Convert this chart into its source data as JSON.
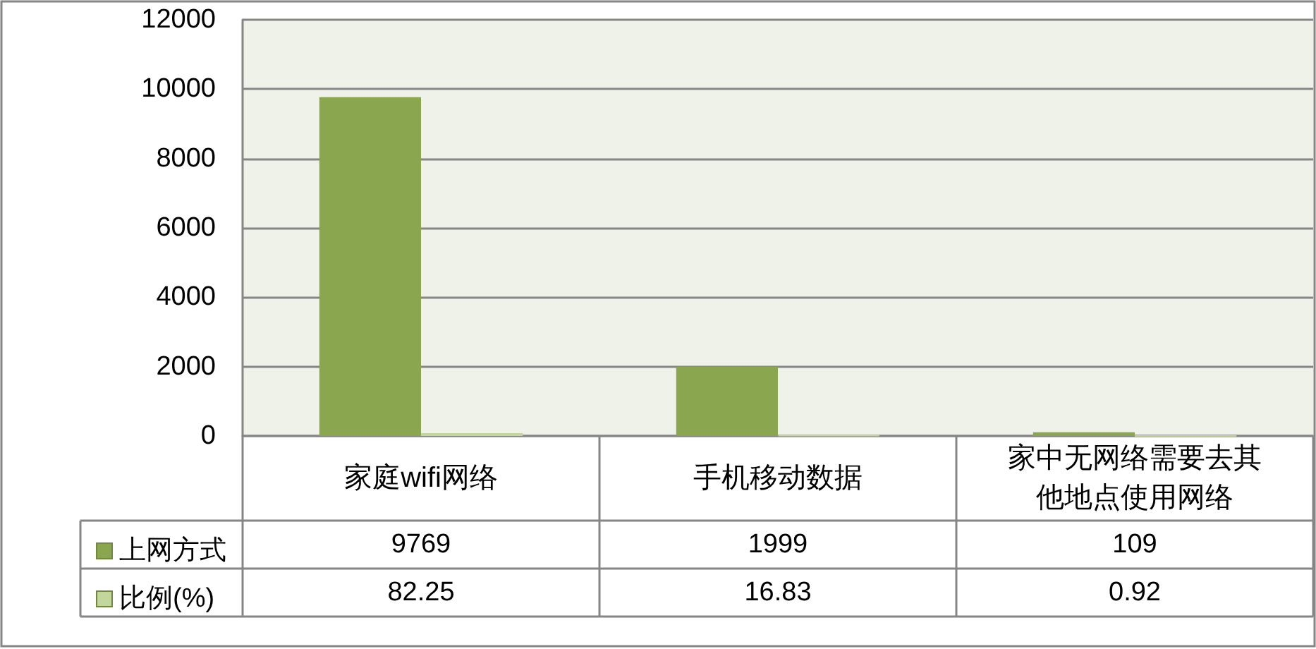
{
  "chart_data": {
    "type": "bar",
    "categories": [
      "家庭wifi网络",
      "手机移动数据",
      "家中无网络需要去其他地点使用网络"
    ],
    "series": [
      {
        "name": "上网方式",
        "color": "#8aa64f",
        "values": [
          9769,
          1999,
          109
        ]
      },
      {
        "name": "比例(%)",
        "color": "#c3d69b",
        "values": [
          82.25,
          16.83,
          0.92
        ]
      }
    ],
    "ylim": [
      0,
      12000
    ],
    "yticks": [
      0,
      2000,
      4000,
      6000,
      8000,
      10000,
      12000
    ],
    "grid": "y",
    "legend": "bottom left",
    "data_labels": true
  }
}
